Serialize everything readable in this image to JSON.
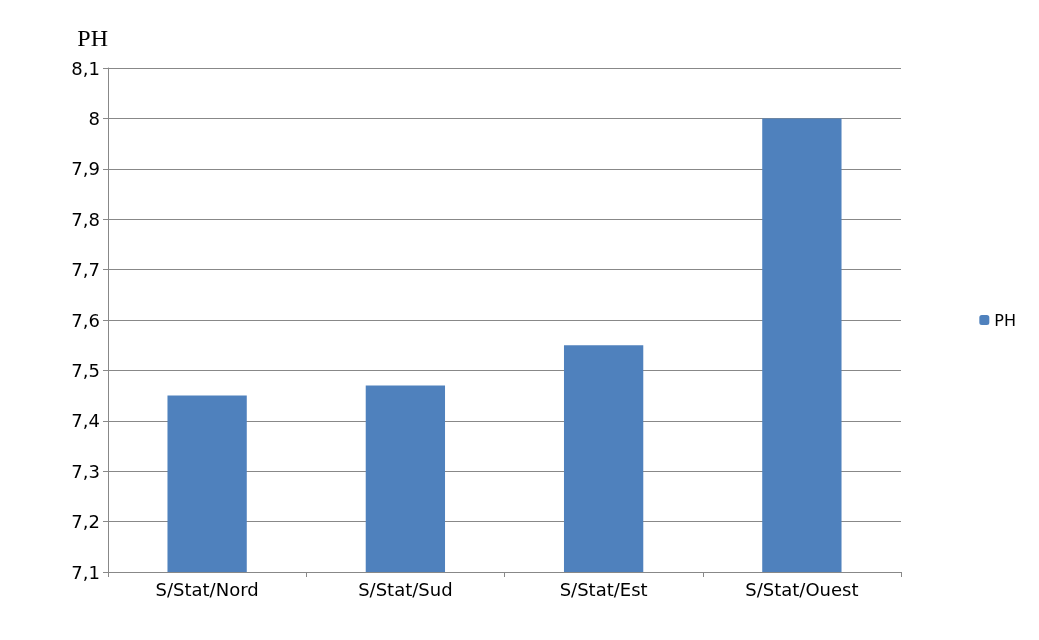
{
  "chart_data": {
    "type": "bar",
    "ylabel": "PH",
    "categories": [
      "S/Stat/Nord",
      "S/Stat/Sud",
      "S/Stat/Est",
      "S/Stat/Ouest"
    ],
    "series": [
      {
        "name": "PH",
        "color": "#4f81bd",
        "values": [
          7.45,
          7.47,
          7.55,
          8.0
        ]
      }
    ],
    "ylim": [
      7.1,
      8.1
    ],
    "yticks": [
      {
        "value": 7.1,
        "label": "7,1"
      },
      {
        "value": 7.2,
        "label": "7,2"
      },
      {
        "value": 7.3,
        "label": "7,3"
      },
      {
        "value": 7.4,
        "label": "7,4"
      },
      {
        "value": 7.5,
        "label": "7,5"
      },
      {
        "value": 7.6,
        "label": "7,6"
      },
      {
        "value": 7.7,
        "label": "7,7"
      },
      {
        "value": 7.8,
        "label": "7,8"
      },
      {
        "value": 7.9,
        "label": "7,9"
      },
      8,
      {
        "value": 8.1,
        "label": "8,1"
      }
    ],
    "grid": "y",
    "legend": "right"
  }
}
